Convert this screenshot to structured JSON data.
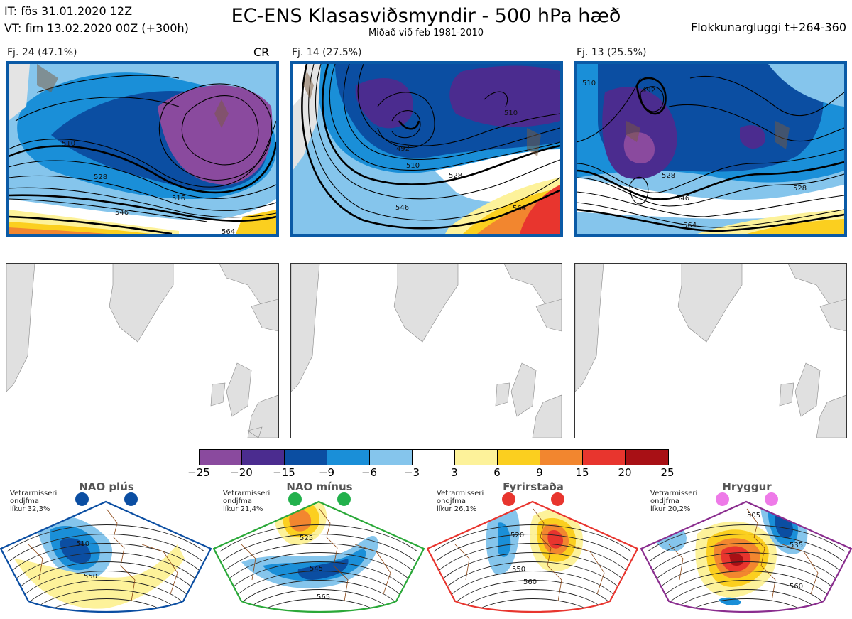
{
  "header": {
    "init_time": "IT: fös 31.01.2020 12Z",
    "valid_time": "VT: fim 13.02.2020 00Z  (+300h)",
    "title": "EC-ENS Klasasviðsmyndir - 500 hPa hæð",
    "subtitle": "Miðað við feb 1981-2010",
    "window": "Flokkunargluggi t+264-360"
  },
  "panels": [
    {
      "label": "Fj. 24 (47.1%)",
      "tag": "CR",
      "contours": [
        "510",
        "528",
        "546",
        "564",
        "516"
      ]
    },
    {
      "label": "Fj. 14 (27.5%)",
      "tag": "",
      "contours": [
        "492",
        "510",
        "528",
        "546",
        "564",
        "510"
      ]
    },
    {
      "label": "Fj. 13 (25.5%)",
      "tag": "",
      "contours": [
        "492",
        "510",
        "528",
        "546",
        "564",
        "528"
      ]
    }
  ],
  "colorbar": {
    "ticks": [
      "−25",
      "−20",
      "−15",
      "−9",
      "−6",
      "−3",
      "3",
      "6",
      "9",
      "15",
      "20",
      "25"
    ],
    "colors": [
      "#8a4a9e",
      "#4b2c8f",
      "#0b4ea2",
      "#1a8fd8",
      "#85c5ec",
      "#ffffff",
      "#fdf29a",
      "#fbcf1f",
      "#f2862f",
      "#e8352e",
      "#a81015"
    ]
  },
  "regimes": [
    {
      "title": "NAO plús",
      "note": [
        "Vetrarmisseri",
        "ondjfma",
        "líkur 32,3%"
      ],
      "frame_color": "#0b4ea2",
      "dot_color": "#0b4ea2",
      "labels": [
        "510",
        "550"
      ]
    },
    {
      "title": "NAO mínus",
      "note": [
        "Vetrarmisseri",
        "ondjfma",
        "líkur 21,4%"
      ],
      "frame_color": "#2aa838",
      "dot_color": "#22b14c",
      "labels": [
        "525",
        "545",
        "565"
      ]
    },
    {
      "title": "Fyrirstaða",
      "note": [
        "Vetrarmisseri",
        "ondjfma",
        "líkur 26,1%"
      ],
      "frame_color": "#e8352e",
      "dot_color": "#e8352e",
      "labels": [
        "520",
        "550",
        "560"
      ]
    },
    {
      "title": "Hryggur",
      "note": [
        "Vetrarmisseri",
        "ondjfma",
        "líkur 20,2%"
      ],
      "frame_color": "#8a2d8e",
      "dot_color": "#ee7ae8",
      "labels": [
        "505",
        "535",
        "560"
      ]
    }
  ]
}
